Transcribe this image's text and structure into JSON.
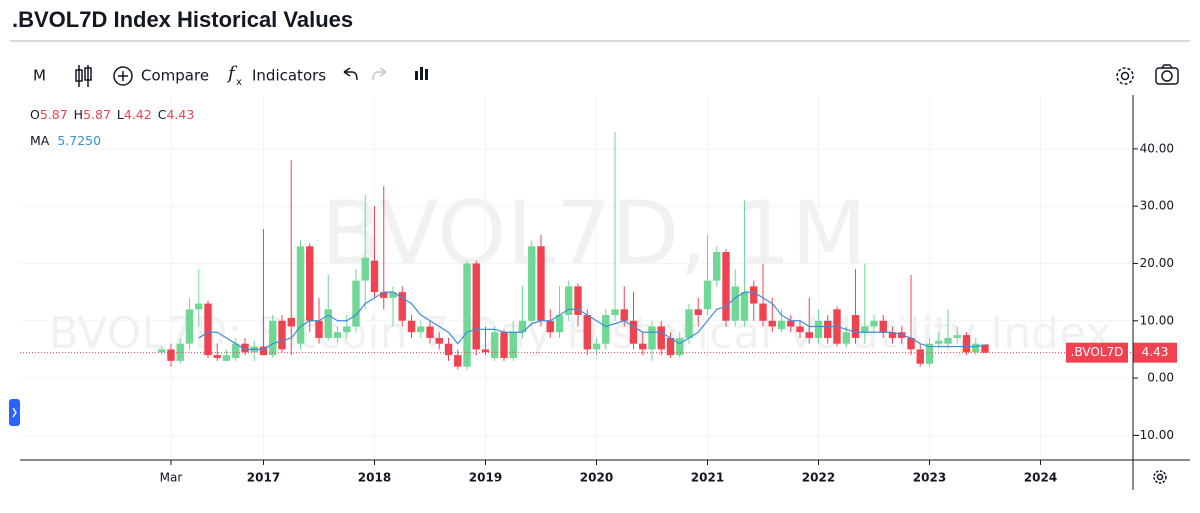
{
  "header": {
    "title": ".BVOL7D Index Historical Values"
  },
  "toolbar": {
    "interval": "M",
    "compare": "Compare",
    "indicators": "Indicators"
  },
  "chart_data": {
    "type": "candlestick",
    "symbol": ".BVOL7D",
    "watermark": ".BVOL7D, 1M",
    "watermark_subtitle": "BVOL7D: Bitcoin 7-Day Historical Volatility Index",
    "legend_labels": {
      "open": "O",
      "high": "H",
      "low": "L",
      "close": "C"
    },
    "x": [
      "2016-02",
      "2016-03",
      "2016-04",
      "2016-05",
      "2016-06",
      "2016-07",
      "2016-08",
      "2016-09",
      "2016-10",
      "2016-11",
      "2016-12",
      "2017-01",
      "2017-02",
      "2017-03",
      "2017-04",
      "2017-05",
      "2017-06",
      "2017-07",
      "2017-08",
      "2017-09",
      "2017-10",
      "2017-11",
      "2017-12",
      "2018-01",
      "2018-02",
      "2018-03",
      "2018-04",
      "2018-05",
      "2018-06",
      "2018-07",
      "2018-08",
      "2018-09",
      "2018-10",
      "2018-11",
      "2018-12",
      "2019-01",
      "2019-02",
      "2019-03",
      "2019-04",
      "2019-05",
      "2019-06",
      "2019-07",
      "2019-08",
      "2019-09",
      "2019-10",
      "2019-11",
      "2019-12",
      "2020-01",
      "2020-02",
      "2020-03",
      "2020-04",
      "2020-05",
      "2020-06",
      "2020-07",
      "2020-08",
      "2020-09",
      "2020-10",
      "2020-11",
      "2020-12",
      "2021-01",
      "2021-02",
      "2021-03",
      "2021-04",
      "2021-05",
      "2021-06",
      "2021-07",
      "2021-08",
      "2021-09",
      "2021-10",
      "2021-11",
      "2021-12",
      "2022-01",
      "2022-02",
      "2022-03",
      "2022-04",
      "2022-05",
      "2022-06",
      "2022-07",
      "2022-08",
      "2022-09",
      "2022-10",
      "2022-11",
      "2022-12",
      "2023-01",
      "2023-02",
      "2023-03",
      "2023-04",
      "2023-05",
      "2023-06",
      "2023-07"
    ],
    "open": [
      4.5,
      5,
      3,
      6,
      12,
      13,
      4,
      3,
      3.5,
      6,
      4.5,
      5.5,
      4,
      10,
      10.5,
      6,
      23,
      10,
      7,
      7,
      8,
      9,
      17,
      20.5,
      15,
      14,
      15,
      10,
      8,
      9,
      7,
      6,
      4,
      2,
      20,
      5,
      3.5,
      8,
      3.5,
      8,
      10,
      23,
      10,
      8,
      11,
      16,
      11,
      5,
      6,
      11,
      12,
      10,
      6,
      5,
      9,
      7,
      4,
      7,
      12,
      12,
      17,
      22,
      10,
      10,
      16,
      13,
      10,
      8.5,
      10,
      9,
      8,
      7,
      10,
      12,
      6,
      11,
      8,
      9,
      10,
      8,
      8,
      7,
      5,
      2.5,
      6,
      6,
      7,
      7.5,
      4.5,
      5.87
    ],
    "high": [
      5.5,
      6,
      7,
      14,
      19,
      13.5,
      6,
      5,
      7,
      7,
      6.5,
      26,
      11,
      11,
      38,
      24,
      23.5,
      14,
      18,
      9,
      11,
      19,
      32,
      30,
      33.5,
      16,
      16,
      11,
      10,
      10,
      8,
      7,
      5,
      20.5,
      20.5,
      9,
      9,
      8.5,
      10,
      16,
      24,
      25,
      12,
      16,
      17,
      16.5,
      12,
      7,
      12,
      43,
      16,
      15,
      8,
      10,
      10,
      8,
      8,
      13,
      14,
      25,
      23,
      22.5,
      19,
      31,
      17,
      20,
      14,
      12,
      11,
      10,
      14,
      12,
      11,
      12.5,
      9,
      19,
      20,
      11,
      11,
      9,
      9,
      18,
      6,
      7,
      8,
      12,
      9,
      8,
      7,
      5.87
    ],
    "low": [
      4,
      2,
      2.5,
      5,
      9,
      3.5,
      3,
      3,
      3,
      4,
      3,
      4,
      3.5,
      4.5,
      4,
      5,
      8,
      6,
      6.5,
      6,
      7,
      8,
      12,
      14,
      12,
      9,
      9,
      7,
      7,
      6,
      5,
      3,
      1.5,
      1.5,
      4,
      4,
      3,
      3,
      3,
      7,
      9,
      9,
      7,
      7,
      10,
      9,
      4,
      4,
      5,
      10,
      9,
      5,
      4,
      3,
      4,
      3.5,
      3.5,
      6,
      9,
      11,
      16,
      9,
      9,
      9,
      10,
      9,
      8,
      8,
      8,
      7,
      6,
      6,
      6,
      5.5,
      5.5,
      6,
      6,
      8,
      7,
      6,
      6,
      4,
      2,
      2,
      5,
      5,
      6,
      4,
      4,
      4.42
    ],
    "close": [
      5,
      3,
      6,
      12,
      13,
      4,
      3.5,
      4,
      6,
      4.5,
      5.5,
      4,
      10,
      5,
      9,
      23,
      10,
      7,
      12,
      8,
      9,
      17,
      21,
      15,
      14,
      15,
      10,
      8,
      9,
      7,
      6,
      4,
      2,
      20,
      5,
      4.5,
      8,
      3.5,
      8,
      10,
      23,
      10,
      8,
      11,
      16,
      11,
      5,
      6,
      11,
      12,
      10,
      6,
      5,
      9,
      5,
      4,
      7,
      12,
      11,
      17,
      22,
      10,
      16,
      15,
      13,
      10,
      9,
      10,
      9,
      8,
      7,
      10,
      7,
      6,
      8,
      7,
      9,
      10,
      8,
      7,
      7,
      5,
      2.5,
      6,
      6.5,
      7,
      7.5,
      4.5,
      6,
      4.43
    ],
    "up_color": "#6fd894",
    "down_color": "#ef4352",
    "series": [
      {
        "name": "MA",
        "color": "#3d8fd6",
        "last_label": "5.7250",
        "values": [
          null,
          null,
          null,
          null,
          7,
          8,
          8,
          7,
          6,
          5,
          5,
          5,
          6,
          6.5,
          7,
          9,
          10,
          10,
          11,
          10,
          10,
          11,
          13,
          14,
          15,
          15,
          14,
          13,
          11,
          10,
          9,
          8,
          6,
          8,
          8.5,
          8.5,
          8.5,
          8,
          8,
          8,
          9.5,
          10,
          10,
          11,
          12,
          12,
          11,
          10,
          9,
          9.5,
          10,
          9,
          8,
          8,
          8,
          7,
          6,
          7,
          8,
          10,
          12,
          12.5,
          14,
          15,
          15,
          14,
          13,
          11,
          10,
          10,
          9,
          9,
          9,
          9,
          8.5,
          8,
          8,
          8,
          8,
          8,
          7.5,
          7,
          6,
          5.5,
          5.5,
          5.5,
          5.5,
          5.5,
          5.5,
          5.725
        ]
      }
    ],
    "xlim": [
      "2014-11",
      "2024-11"
    ],
    "xticks": [
      {
        "value": "2016-03",
        "label": "Mar"
      },
      {
        "value": "2017-01",
        "label": "2017"
      },
      {
        "value": "2018-01",
        "label": "2018"
      },
      {
        "value": "2019-01",
        "label": "2019"
      },
      {
        "value": "2020-01",
        "label": "2020"
      },
      {
        "value": "2021-01",
        "label": "2021"
      },
      {
        "value": "2022-01",
        "label": "2022"
      },
      {
        "value": "2023-01",
        "label": "2023"
      },
      {
        "value": "2024-01",
        "label": "2024"
      }
    ],
    "ylim": [
      -14.3,
      49.4
    ],
    "yticks": [
      {
        "value": -10,
        "label": "-10.00"
      },
      {
        "value": 0,
        "label": "0.00"
      },
      {
        "value": 10,
        "label": "10.00"
      },
      {
        "value": 20,
        "label": "20.00"
      },
      {
        "value": 30,
        "label": "30.00"
      },
      {
        "value": 40,
        "label": "40.00"
      }
    ],
    "grid": true
  }
}
